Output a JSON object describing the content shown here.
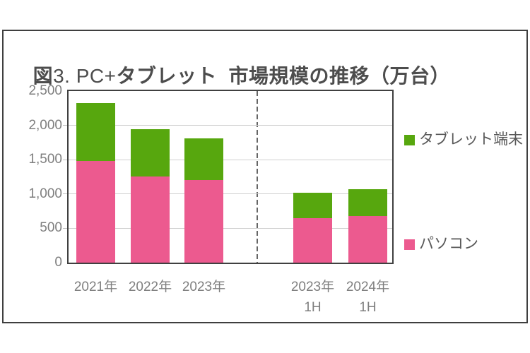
{
  "title": {
    "prefix_bold": "図",
    "prefix_regular": "3. PC+",
    "main_bold": "タブレット  市場規模の推移（万台）"
  },
  "legend": {
    "items": [
      {
        "label": "タブレット端末",
        "series": "tablet"
      },
      {
        "label": "パソコン",
        "series": "pc"
      }
    ]
  },
  "colors": {
    "pc_pink": "#ec5a8f",
    "tablet_green": "#57a70e",
    "frame": "#3f3f3f",
    "plot_border": "#404040",
    "gridline": "#cfcfcf",
    "axis_label": "#7f7f7f",
    "legend_label": "#595959",
    "title_text": "#4d4d4d",
    "divider": "#666666"
  },
  "chart_data": {
    "type": "bar",
    "stacked": true,
    "title": "図3. PC+タブレット 市場規模の推移（万台）",
    "unit": "万台",
    "categories": [
      "2021年",
      "2022年",
      "2023年",
      "2023年 1H",
      "2024年 1H"
    ],
    "category_label_lines": [
      [
        "2021年"
      ],
      [
        "2022年"
      ],
      [
        "2023年"
      ],
      [
        "2023年",
        "1H"
      ],
      [
        "2024年",
        "1H"
      ]
    ],
    "series": [
      {
        "name": "パソコン",
        "color": "#ec5a8f",
        "values": [
          1480,
          1260,
          1200,
          650,
          680
        ]
      },
      {
        "name": "タブレット端末",
        "color": "#57a70e",
        "values": [
          850,
          680,
          610,
          370,
          390
        ]
      }
    ],
    "stack_totals": [
      2330,
      1940,
      1810,
      1020,
      1070
    ],
    "ylim": [
      0,
      2500
    ],
    "yticks": [
      0,
      500,
      1000,
      1500,
      2000,
      2500
    ],
    "ytick_labels": [
      "0",
      "500",
      "1,000",
      "1,500",
      "2,000",
      "2,500"
    ],
    "grid": "horizontal",
    "legend_position": "right",
    "group_divider_after": "2023年"
  }
}
